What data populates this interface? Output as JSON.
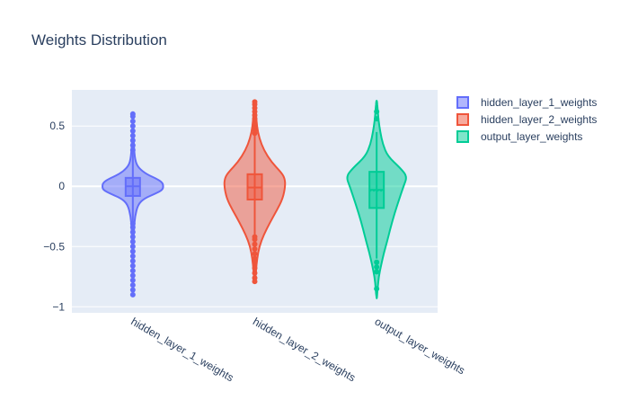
{
  "chart_data": {
    "type": "violin",
    "title": "Weights Distribution",
    "xlabel": "",
    "ylabel": "",
    "ylim": [
      -1.05,
      0.8
    ],
    "yticks": [
      0.5,
      0,
      -0.5,
      -1
    ],
    "ytick_labels": [
      "0.5",
      "0",
      "−0.5",
      "−1"
    ],
    "grid": true,
    "legend_position": "top-right",
    "categories": [
      "hidden_layer_1_weights",
      "hidden_layer_2_weights",
      "output_layer_weights"
    ],
    "series": [
      {
        "name": "hidden_layer_1_weights",
        "color": "#636efa",
        "fill": "rgba(99,110,250,0.5)",
        "box": {
          "q1": -0.08,
          "median": 0.0,
          "q3": 0.07,
          "mean": 0.0,
          "whisker_low": -0.3,
          "whisker_high": 0.28
        },
        "profile": [
          [
            -0.9,
            0.005
          ],
          [
            -0.8,
            0.01
          ],
          [
            -0.6,
            0.015
          ],
          [
            -0.45,
            0.025
          ],
          [
            -0.35,
            0.04
          ],
          [
            -0.25,
            0.07
          ],
          [
            -0.15,
            0.17
          ],
          [
            -0.1,
            0.38
          ],
          [
            -0.06,
            0.75
          ],
          [
            -0.03,
            0.97
          ],
          [
            0.0,
            1.0
          ],
          [
            0.03,
            0.97
          ],
          [
            0.06,
            0.8
          ],
          [
            0.1,
            0.45
          ],
          [
            0.15,
            0.2
          ],
          [
            0.2,
            0.09
          ],
          [
            0.3,
            0.04
          ],
          [
            0.45,
            0.02
          ],
          [
            0.6,
            0.005
          ]
        ],
        "outliers": [
          -0.9,
          -0.86,
          -0.82,
          -0.78,
          -0.74,
          -0.7,
          -0.66,
          -0.62,
          -0.58,
          -0.54,
          -0.5,
          -0.46,
          -0.42,
          -0.38,
          -0.34,
          -0.31,
          0.3,
          0.34,
          0.38,
          0.42,
          0.46,
          0.5,
          0.54,
          0.58,
          0.6
        ]
      },
      {
        "name": "hidden_layer_2_weights",
        "color": "#ef553b",
        "fill": "rgba(239,85,59,0.5)",
        "box": {
          "q1": -0.11,
          "median": -0.01,
          "q3": 0.1,
          "mean": -0.01,
          "whisker_low": -0.4,
          "whisker_high": 0.42
        },
        "profile": [
          [
            -0.79,
            0.01
          ],
          [
            -0.7,
            0.04
          ],
          [
            -0.6,
            0.08
          ],
          [
            -0.5,
            0.15
          ],
          [
            -0.4,
            0.3
          ],
          [
            -0.3,
            0.5
          ],
          [
            -0.2,
            0.72
          ],
          [
            -0.1,
            0.92
          ],
          [
            0.0,
            1.0
          ],
          [
            0.07,
            0.98
          ],
          [
            0.12,
            0.85
          ],
          [
            0.2,
            0.55
          ],
          [
            0.3,
            0.3
          ],
          [
            0.4,
            0.15
          ],
          [
            0.5,
            0.07
          ],
          [
            0.6,
            0.04
          ],
          [
            0.7,
            0.01
          ]
        ],
        "outliers": [
          -0.79,
          -0.76,
          -0.72,
          -0.68,
          -0.64,
          -0.6,
          -0.56,
          -0.52,
          -0.48,
          -0.44,
          -0.42,
          0.44,
          0.47,
          0.5,
          0.53,
          0.56,
          0.59,
          0.62,
          0.65,
          0.68,
          0.7
        ]
      },
      {
        "name": "output_layer_weights",
        "color": "#00cc96",
        "fill": "rgba(0,204,150,0.5)",
        "box": {
          "q1": -0.18,
          "median": -0.03,
          "q3": 0.12,
          "mean": -0.04,
          "whisker_low": -0.6,
          "whisker_high": 0.45
        },
        "profile": [
          [
            -0.93,
            0.01
          ],
          [
            -0.85,
            0.03
          ],
          [
            -0.75,
            0.07
          ],
          [
            -0.65,
            0.15
          ],
          [
            -0.55,
            0.24
          ],
          [
            -0.45,
            0.35
          ],
          [
            -0.3,
            0.5
          ],
          [
            -0.15,
            0.68
          ],
          [
            0.0,
            0.88
          ],
          [
            0.08,
            1.0
          ],
          [
            0.15,
            0.78
          ],
          [
            0.25,
            0.36
          ],
          [
            0.35,
            0.2
          ],
          [
            0.45,
            0.12
          ],
          [
            0.55,
            0.06
          ],
          [
            0.65,
            0.03
          ],
          [
            0.71,
            0.01
          ]
        ],
        "outliers": [
          -0.85,
          -0.71,
          -0.67,
          -0.63,
          0.56,
          0.62
        ]
      }
    ]
  }
}
